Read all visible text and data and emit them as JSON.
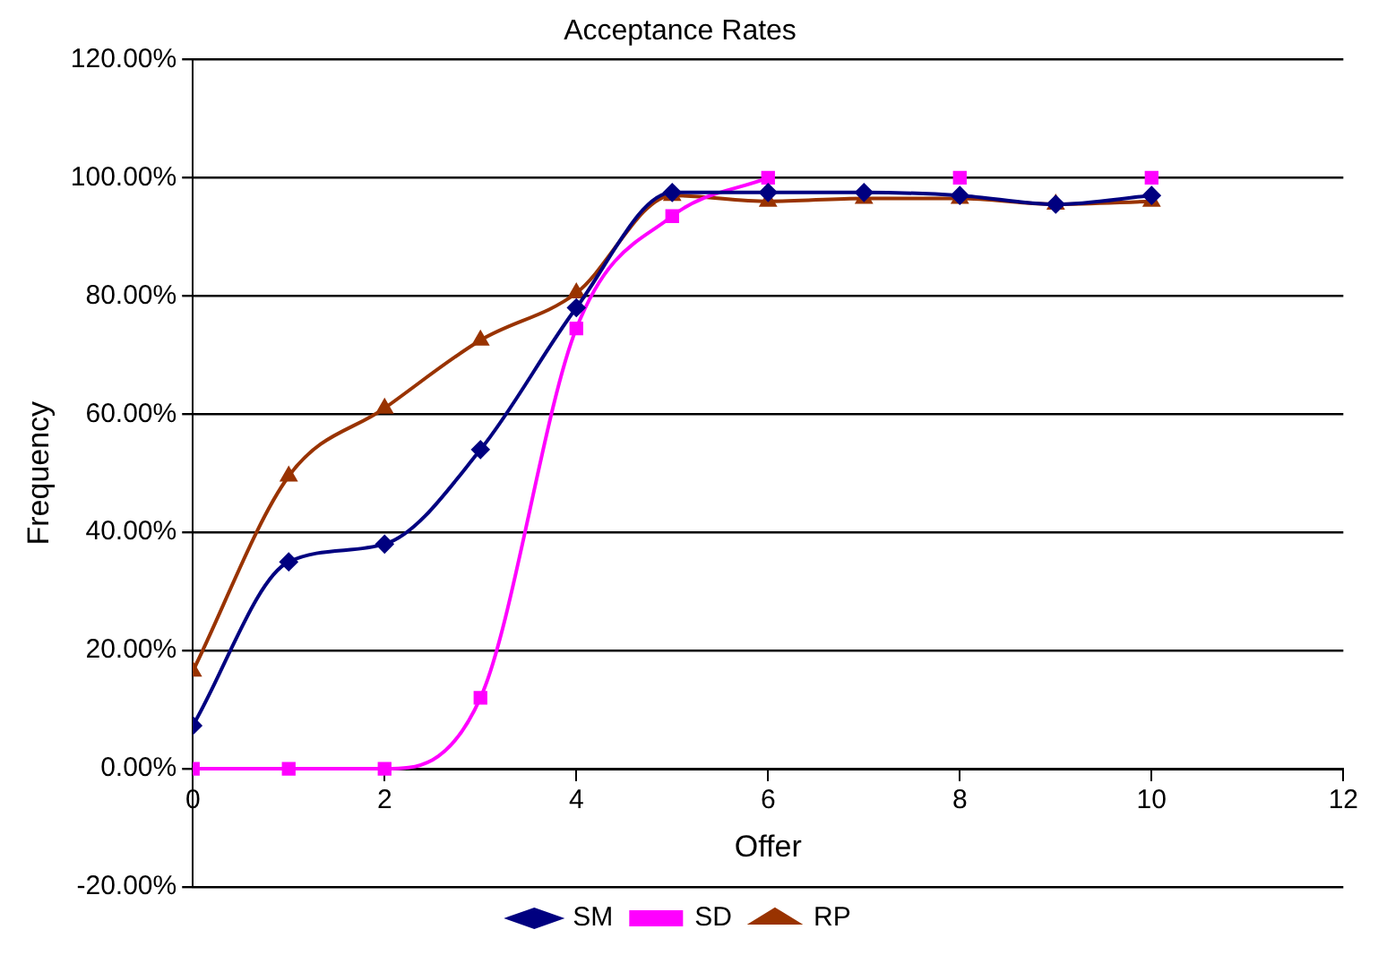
{
  "chart_data": {
    "type": "line",
    "title": "Acceptance Rates",
    "xlabel": "Offer",
    "ylabel": "Frequency",
    "x": [
      0,
      1,
      2,
      3,
      4,
      5,
      6,
      7,
      8,
      9,
      10
    ],
    "series": [
      {
        "name": "SM",
        "color": "#000080",
        "marker": "diamond",
        "values": [
          7.3,
          35,
          38,
          54,
          78,
          97.5,
          97.5,
          97.5,
          97,
          95.5,
          97
        ]
      },
      {
        "name": "SD",
        "color": "#ff00ff",
        "marker": "square",
        "values": [
          0,
          0,
          0,
          12,
          74.5,
          93.5,
          100,
          null,
          100,
          null,
          100
        ]
      },
      {
        "name": "RP",
        "color": "#993300",
        "marker": "triangle",
        "values": [
          16.5,
          49.5,
          61,
          72.5,
          80.5,
          97,
          96,
          96.5,
          96.5,
          95.5,
          96
        ]
      }
    ],
    "xlim": [
      0,
      12
    ],
    "xticks": [
      0,
      2,
      4,
      6,
      8,
      10,
      12
    ],
    "ylim": [
      -20,
      120
    ],
    "yticks": [
      {
        "value": -20,
        "label": "-20.00%"
      },
      {
        "value": 0,
        "label": "0.00%"
      },
      {
        "value": 20,
        "label": "20.00%"
      },
      {
        "value": 40,
        "label": "40.00%"
      },
      {
        "value": 60,
        "label": "60.00%"
      },
      {
        "value": 80,
        "label": "80.00%"
      },
      {
        "value": 100,
        "label": "100.00%"
      },
      {
        "value": 120,
        "label": "120.00%"
      }
    ],
    "grid": "y",
    "legend": "bottom",
    "line_style": "solid"
  }
}
